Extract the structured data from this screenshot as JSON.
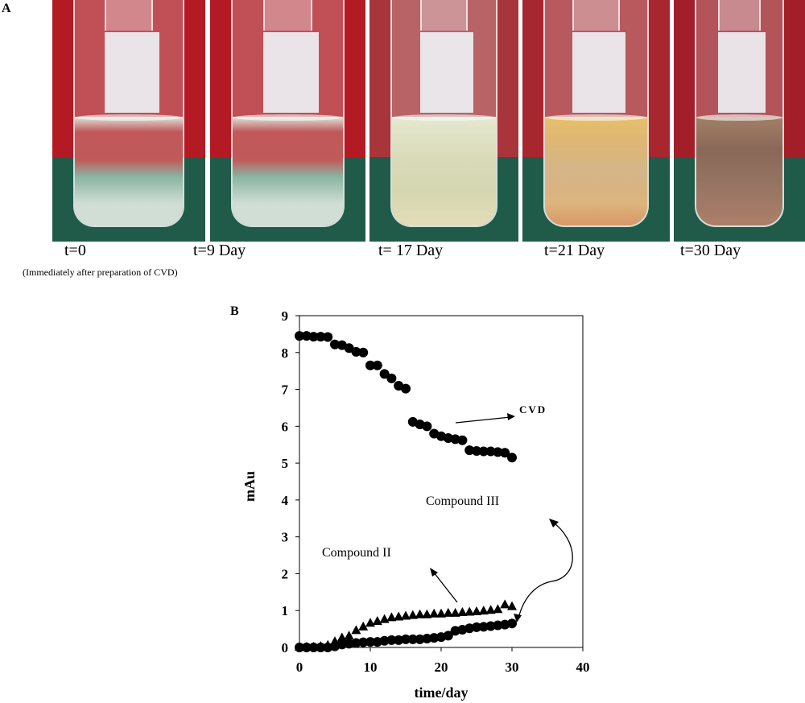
{
  "panel_a": {
    "letter": "A",
    "captions": [
      "t=0",
      "t=9 Day",
      "t= 17 Day",
      "t=21 Day",
      "t=30 Day"
    ],
    "subcaption": "(Immediately  after preparation  of CVD)"
  },
  "panel_b": {
    "letter": "B"
  },
  "chart_data": {
    "type": "scatter",
    "xlabel": "time/day",
    "ylabel": "mAu",
    "xlim": [
      0,
      40
    ],
    "ylim": [
      0,
      9
    ],
    "xticks": [
      0,
      10,
      20,
      30,
      40
    ],
    "yticks": [
      0,
      1,
      2,
      3,
      4,
      5,
      6,
      7,
      8,
      9
    ],
    "annotations": [
      "CVD",
      "Compound III",
      "Compound II"
    ],
    "series": [
      {
        "marker": "circle",
        "x": [
          0,
          1,
          2,
          3,
          4,
          5,
          6,
          7,
          8,
          9,
          10,
          11,
          12,
          13,
          14,
          15,
          16,
          17,
          18,
          19,
          20,
          21,
          22,
          23,
          24,
          25,
          26,
          27,
          28,
          29,
          30
        ],
        "y": [
          8.45,
          8.45,
          8.43,
          8.43,
          8.42,
          8.22,
          8.2,
          8.12,
          8.02,
          8.0,
          7.65,
          7.65,
          7.42,
          7.3,
          7.1,
          7.02,
          6.12,
          6.05,
          6.0,
          5.8,
          5.73,
          5.68,
          5.65,
          5.62,
          5.35,
          5.33,
          5.32,
          5.32,
          5.3,
          5.28,
          5.15
        ]
      },
      {
        "marker": "circle",
        "x": [
          0,
          1,
          2,
          3,
          4,
          5,
          6,
          7,
          8,
          9,
          10,
          11,
          12,
          13,
          14,
          15,
          16,
          17,
          18,
          19,
          20,
          21,
          22,
          23,
          24,
          25,
          26,
          27,
          28,
          29,
          30
        ],
        "y": [
          0,
          0,
          0,
          0,
          0,
          0.03,
          0.08,
          0.1,
          0.12,
          0.14,
          0.15,
          0.15,
          0.18,
          0.2,
          0.2,
          0.22,
          0.22,
          0.22,
          0.24,
          0.26,
          0.28,
          0.32,
          0.45,
          0.48,
          0.52,
          0.55,
          0.56,
          0.58,
          0.6,
          0.62,
          0.65
        ]
      },
      {
        "marker": "triangle",
        "x": [
          0,
          1,
          2,
          3,
          4,
          5,
          6,
          7,
          8,
          9,
          10,
          11,
          12,
          13,
          14,
          15,
          16,
          17,
          18,
          19,
          20,
          21,
          22,
          23,
          24,
          25,
          26,
          27,
          28,
          29,
          30
        ],
        "y": [
          0,
          0,
          0,
          0.02,
          0.05,
          0.15,
          0.25,
          0.3,
          0.45,
          0.55,
          0.65,
          0.7,
          0.75,
          0.8,
          0.82,
          0.84,
          0.86,
          0.88,
          0.88,
          0.9,
          0.9,
          0.92,
          0.92,
          0.94,
          0.95,
          0.96,
          0.98,
          1.0,
          1.02,
          1.15,
          1.1
        ]
      }
    ]
  }
}
